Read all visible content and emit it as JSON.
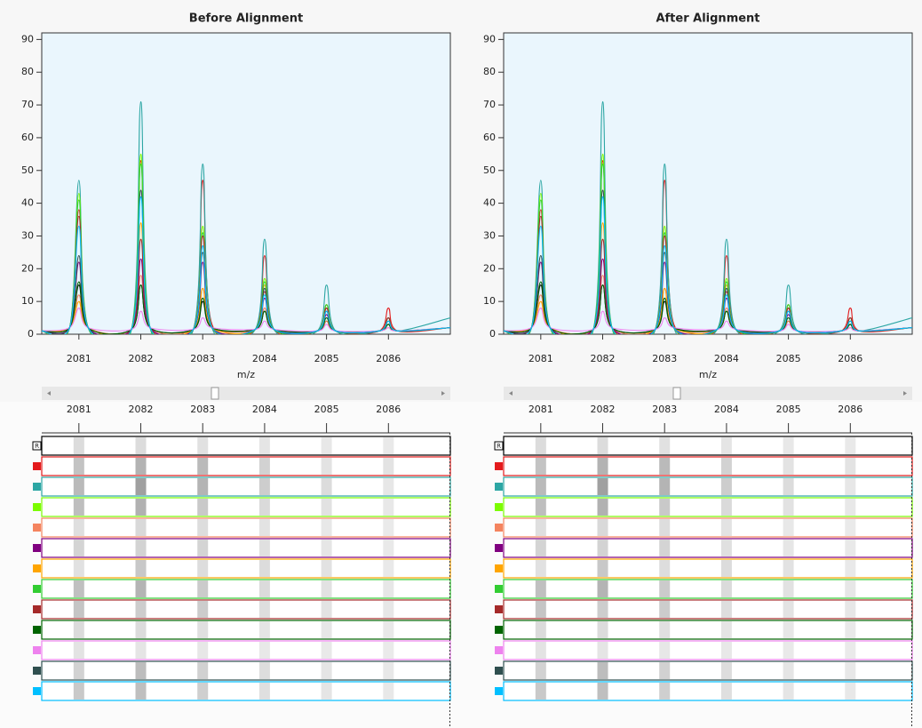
{
  "chart_data": [
    {
      "type": "line",
      "title": "Before Alignment",
      "x_label": "m/z",
      "reference_marker": "R",
      "xlim": [
        2080.4,
        2087
      ],
      "ylim": [
        0,
        92
      ],
      "xticks": [
        2081,
        2082,
        2083,
        2084,
        2085,
        2086
      ],
      "yticks": [
        0,
        10,
        20,
        30,
        40,
        50,
        60,
        70,
        80,
        90
      ],
      "x": [
        2080.4,
        2080.85,
        2081,
        2081.15,
        2081.85,
        2082,
        2082.15,
        2082.85,
        2083,
        2083.15,
        2083.85,
        2084,
        2084.15,
        2084.85,
        2085,
        2085.15,
        2085.85,
        2086,
        2086.15,
        2087
      ],
      "series": [
        {
          "color": "#000000",
          "values": [
            1,
            2,
            15,
            2,
            1.5,
            15,
            2,
            1.5,
            10,
            2,
            1.5,
            7,
            1.5,
            1,
            4,
            1,
            1,
            3,
            1,
            2
          ]
        },
        {
          "color": "#e31a1c",
          "values": [
            1,
            2,
            38,
            2,
            1.5,
            53,
            2,
            1.5,
            47,
            3,
            1.5,
            24,
            1.5,
            1,
            8,
            1,
            1,
            8,
            1,
            2
          ]
        },
        {
          "color": "#2ca6a4",
          "values": [
            1,
            2,
            47,
            2,
            1.5,
            71,
            2,
            1.5,
            52,
            2,
            1.5,
            29,
            1.5,
            1,
            15,
            1,
            1,
            5,
            1,
            5
          ]
        },
        {
          "color": "#7cfc00",
          "values": [
            1,
            2,
            43,
            2,
            1.5,
            55,
            2,
            1.5,
            33,
            2,
            1.5,
            17,
            1.5,
            1,
            9,
            1,
            1,
            4,
            1,
            2
          ]
        },
        {
          "color": "#f4845f",
          "values": [
            1,
            2,
            12,
            2,
            1.5,
            18,
            2,
            1.5,
            14,
            2,
            1.5,
            8,
            1.5,
            1,
            4,
            1,
            1,
            2,
            1,
            2
          ]
        },
        {
          "color": "#800080",
          "values": [
            1,
            2,
            22,
            2,
            1.5,
            23,
            2,
            1.5,
            22,
            2,
            1.5,
            11,
            1.5,
            1,
            6,
            1,
            1,
            3,
            1,
            2
          ]
        },
        {
          "color": "#ffa500",
          "values": [
            1,
            2,
            10,
            2,
            1.5,
            34,
            2,
            1.5,
            14,
            2,
            1.5,
            15,
            1.5,
            1,
            9,
            1,
            1,
            3,
            1,
            2
          ]
        },
        {
          "color": "#32cd32",
          "values": [
            1,
            2,
            41,
            2,
            1.5,
            52,
            2,
            1.5,
            31,
            2,
            1.5,
            16,
            1.5,
            1,
            9,
            1,
            1,
            5,
            1,
            2
          ]
        },
        {
          "color": "#a52a2a",
          "values": [
            1,
            2,
            36,
            2,
            1.5,
            29,
            2,
            1.5,
            30,
            2,
            1.5,
            13,
            1.5,
            1,
            8,
            1,
            1,
            5,
            1,
            2
          ]
        },
        {
          "color": "#006400",
          "values": [
            1,
            2,
            16,
            2,
            1.5,
            15,
            2,
            1.5,
            11,
            2,
            1.5,
            7,
            1.5,
            1,
            5,
            1,
            1,
            3,
            1,
            2
          ]
        },
        {
          "color": "#ee82ee",
          "values": [
            1,
            2,
            8,
            2,
            1.5,
            7,
            2,
            1.5,
            5,
            2,
            1.5,
            4,
            1.5,
            1,
            3,
            1,
            1,
            2,
            1,
            2
          ]
        },
        {
          "color": "#2f4f4f",
          "values": [
            1,
            2,
            24,
            2,
            1.5,
            44,
            2,
            1.5,
            25,
            2,
            1.5,
            14,
            1.5,
            1,
            7,
            1,
            1,
            4,
            1,
            2
          ]
        },
        {
          "color": "#00bfff",
          "values": [
            1,
            2,
            33,
            2,
            1.5,
            42,
            2,
            1.5,
            27,
            2,
            1.5,
            12,
            1.5,
            1,
            7,
            1,
            1,
            4,
            1,
            2
          ]
        }
      ]
    },
    {
      "type": "line",
      "title": "After Alignment",
      "x_label": "m/z",
      "reference_marker": "R",
      "xlim": [
        2080.4,
        2087
      ],
      "ylim": [
        0,
        92
      ],
      "xticks": [
        2081,
        2082,
        2083,
        2084,
        2085,
        2086
      ],
      "yticks": [
        0,
        10,
        20,
        30,
        40,
        50,
        60,
        70,
        80,
        90
      ],
      "x": [
        2080.4,
        2080.85,
        2081,
        2081.15,
        2081.85,
        2082,
        2082.15,
        2082.85,
        2083,
        2083.15,
        2083.85,
        2084,
        2084.15,
        2084.85,
        2085,
        2085.15,
        2085.85,
        2086,
        2086.15,
        2087
      ],
      "series": [
        {
          "color": "#000000",
          "values": [
            1,
            2,
            15,
            2,
            1.5,
            15,
            2,
            1.5,
            10,
            2,
            1.5,
            7,
            1.5,
            1,
            4,
            1,
            1,
            3,
            1,
            2
          ]
        },
        {
          "color": "#e31a1c",
          "values": [
            1,
            2,
            38,
            2,
            1.5,
            53,
            2,
            1.5,
            47,
            3,
            1.5,
            24,
            1.5,
            1,
            8,
            1,
            1,
            8,
            1,
            2
          ]
        },
        {
          "color": "#2ca6a4",
          "values": [
            1,
            2,
            47,
            2,
            1.5,
            71,
            2,
            1.5,
            52,
            2,
            1.5,
            29,
            1.5,
            1,
            15,
            1,
            1,
            5,
            1,
            5
          ]
        },
        {
          "color": "#7cfc00",
          "values": [
            1,
            2,
            43,
            2,
            1.5,
            55,
            2,
            1.5,
            33,
            2,
            1.5,
            17,
            1.5,
            1,
            9,
            1,
            1,
            4,
            1,
            2
          ]
        },
        {
          "color": "#f4845f",
          "values": [
            1,
            2,
            12,
            2,
            1.5,
            18,
            2,
            1.5,
            14,
            2,
            1.5,
            8,
            1.5,
            1,
            4,
            1,
            1,
            2,
            1,
            2
          ]
        },
        {
          "color": "#800080",
          "values": [
            1,
            2,
            22,
            2,
            1.5,
            23,
            2,
            1.5,
            22,
            2,
            1.5,
            11,
            1.5,
            1,
            6,
            1,
            1,
            3,
            1,
            2
          ]
        },
        {
          "color": "#ffa500",
          "values": [
            1,
            2,
            10,
            2,
            1.5,
            34,
            2,
            1.5,
            14,
            2,
            1.5,
            15,
            1.5,
            1,
            9,
            1,
            1,
            3,
            1,
            2
          ]
        },
        {
          "color": "#32cd32",
          "values": [
            1,
            2,
            41,
            2,
            1.5,
            52,
            2,
            1.5,
            31,
            2,
            1.5,
            16,
            1.5,
            1,
            9,
            1,
            1,
            5,
            1,
            2
          ]
        },
        {
          "color": "#a52a2a",
          "values": [
            1,
            2,
            36,
            2,
            1.5,
            29,
            2,
            1.5,
            30,
            2,
            1.5,
            13,
            1.5,
            1,
            8,
            1,
            1,
            5,
            1,
            2
          ]
        },
        {
          "color": "#006400",
          "values": [
            1,
            2,
            16,
            2,
            1.5,
            15,
            2,
            1.5,
            11,
            2,
            1.5,
            7,
            1.5,
            1,
            5,
            1,
            1,
            3,
            1,
            2
          ]
        },
        {
          "color": "#ee82ee",
          "values": [
            1,
            2,
            8,
            2,
            1.5,
            7,
            2,
            1.5,
            5,
            2,
            1.5,
            4,
            1.5,
            1,
            3,
            1,
            1,
            2,
            1,
            2
          ]
        },
        {
          "color": "#2f4f4f",
          "values": [
            1,
            2,
            24,
            2,
            1.5,
            44,
            2,
            1.5,
            25,
            2,
            1.5,
            14,
            1.5,
            1,
            7,
            1,
            1,
            4,
            1,
            2
          ]
        },
        {
          "color": "#00bfff",
          "values": [
            1,
            2,
            33,
            2,
            1.5,
            42,
            2,
            1.5,
            27,
            2,
            1.5,
            12,
            1.5,
            1,
            7,
            1,
            1,
            4,
            1,
            2
          ]
        }
      ]
    }
  ]
}
